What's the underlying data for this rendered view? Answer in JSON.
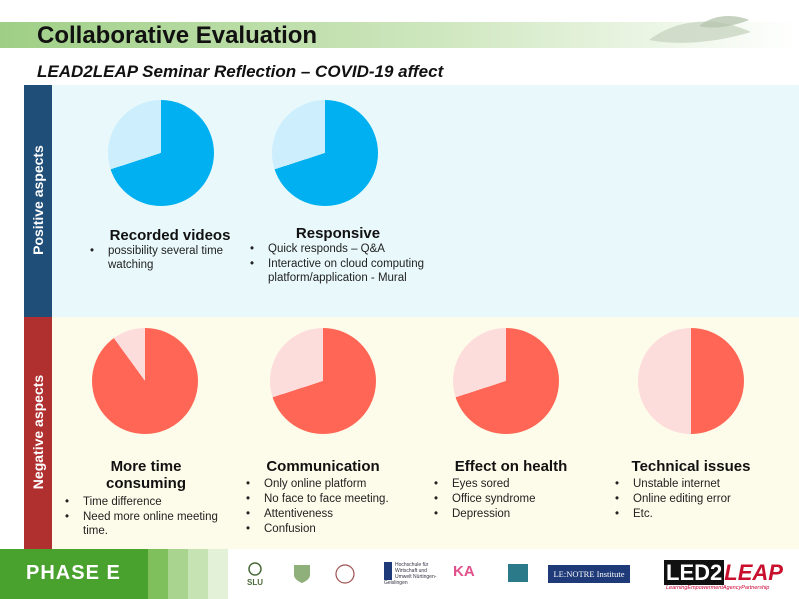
{
  "title": "Collaborative Evaluation",
  "subtitle": "LEAD2LEAP Seminar Reflection – COVID-19 affect",
  "positive": {
    "label": "Positive aspects",
    "color": "#00b0f0",
    "light_color": "#cdeefc",
    "items": [
      {
        "title": "Recorded videos",
        "share": 0.7,
        "bullets": [
          "possibility several time watching"
        ]
      },
      {
        "title": "Responsive",
        "share": 0.7,
        "bullets": [
          "Quick responds – Q&A",
          "Interactive on cloud computing platform/application - Mural"
        ]
      }
    ]
  },
  "negative": {
    "label": "Negative aspects",
    "color": "#ff6655",
    "light_color": "#fddcdc",
    "items": [
      {
        "title_line1": "More time",
        "title_line2": "consuming",
        "share": 0.9,
        "bullets": [
          "Time difference",
          "Need more online meeting time."
        ]
      },
      {
        "title_line1": "Communication",
        "title_line2": "",
        "share": 0.7,
        "bullets": [
          "Only online platform",
          "No face to face meeting.",
          "Attentiveness",
          "Confusion"
        ]
      },
      {
        "title_line1": "Effect on health",
        "title_line2": "",
        "share": 0.7,
        "bullets": [
          "Eyes sored",
          "Office syndrome",
          "Depression"
        ]
      },
      {
        "title_line1": "Technical issues",
        "title_line2": "",
        "share": 0.5,
        "bullets": [
          "Unstable internet",
          "Online editing error",
          "Etc."
        ]
      }
    ]
  },
  "footer": {
    "phase": "PHASE E",
    "logos": [
      "SLU",
      "Hochschule für Wirtschaft und Umwelt Nürtingen-Geislingen",
      "KA",
      "LE:NOTRE Institute"
    ],
    "brand": "LED2LEAP",
    "brand_sub": "LearningEmpowermentAgencyPartnership"
  }
}
